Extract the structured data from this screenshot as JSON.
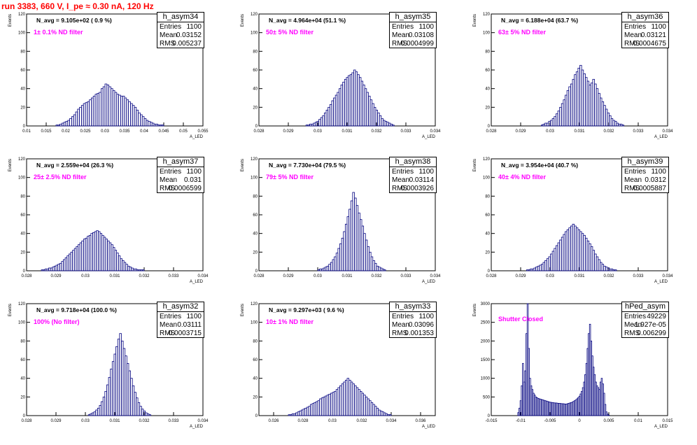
{
  "title": "run 3383,   660 V, I_pe ≈ 0.30 nA, 120 Hz",
  "stat_labels": {
    "entries": "Entries",
    "mean": "Mean",
    "rms": "RMS"
  },
  "colors": {
    "hist": "#00007f",
    "title": "#ff0000",
    "filter_text": "#ff00ff",
    "frame": "#000000"
  },
  "chart_data": [
    {
      "type": "bar",
      "name": "h_asym34",
      "navg": "N_avg = 9.105e+02 ( 0.9 %)",
      "filter": "1± 0.1% ND filter",
      "entries": "1100",
      "mean": "0.03152",
      "rms": "0.005237",
      "ylabel": "Events",
      "xlabel": "A_LED",
      "xlim": [
        0.01,
        0.055
      ],
      "ylim": [
        0,
        120
      ],
      "xticks": [
        0.01,
        0.015,
        0.02,
        0.025,
        0.03,
        0.035,
        0.04,
        0.045,
        0.05,
        0.055
      ],
      "xtick_labels": [
        "0.01",
        "0.015",
        "0.02",
        "0.025",
        "0.03",
        "0.035",
        "0.04",
        "0.045",
        "0.05",
        "0.055"
      ],
      "yticks": [
        0,
        20,
        40,
        60,
        80,
        100,
        120
      ],
      "ytick_labels": [
        "0",
        "20",
        "40",
        "60",
        "80",
        "100",
        "120"
      ],
      "bins": {
        "x0": 0.0175,
        "width": 0.0005,
        "values": [
          1,
          1,
          2,
          3,
          4,
          5,
          6,
          8,
          10,
          12,
          15,
          18,
          20,
          22,
          24,
          25,
          26,
          28,
          30,
          32,
          34,
          35,
          36,
          40,
          42,
          45,
          44,
          42,
          40,
          38,
          36,
          34,
          33,
          32,
          32,
          30,
          28,
          26,
          24,
          22,
          20,
          17,
          14,
          12,
          10,
          8,
          6,
          5,
          4,
          3,
          2,
          2,
          1,
          1,
          1
        ]
      }
    },
    {
      "type": "bar",
      "name": "h_asym35",
      "navg": "N_avg = 4.964e+04 (51.1 %)",
      "filter": "50± 5% ND filter",
      "entries": "1100",
      "mean": "0.03108",
      "rms": "0.0004999",
      "ylabel": "Events",
      "xlabel": "A_LED",
      "xlim": [
        0.028,
        0.034
      ],
      "ylim": [
        0,
        120
      ],
      "xticks": [
        0.028,
        0.029,
        0.03,
        0.031,
        0.032,
        0.033,
        0.034
      ],
      "xtick_labels": [
        "0.028",
        "0.029",
        "0.03",
        "0.031",
        "0.032",
        "0.033",
        "0.034"
      ],
      "yticks": [
        0,
        20,
        40,
        60,
        80,
        100,
        120
      ],
      "ytick_labels": [
        "0",
        "20",
        "40",
        "60",
        "80",
        "100",
        "120"
      ],
      "bins": {
        "x0": 0.0296,
        "width": 6.25e-05,
        "values": [
          1,
          1,
          2,
          2,
          3,
          4,
          5,
          7,
          9,
          11,
          14,
          17,
          20,
          23,
          27,
          30,
          33,
          36,
          40,
          44,
          47,
          50,
          52,
          54,
          55,
          57,
          60,
          58,
          55,
          52,
          48,
          44,
          40,
          36,
          32,
          28,
          24,
          20,
          17,
          14,
          11,
          8,
          6,
          5,
          4,
          3,
          2,
          1
        ]
      }
    },
    {
      "type": "bar",
      "name": "h_asym36",
      "navg": "N_avg = 6.188e+04 (63.7 %)",
      "filter": "63± 5% ND filter",
      "entries": "1100",
      "mean": "0.03121",
      "rms": "0.0004675",
      "ylabel": "Events",
      "xlabel": "A_LED",
      "xlim": [
        0.028,
        0.034
      ],
      "ylim": [
        0,
        120
      ],
      "xticks": [
        0.028,
        0.029,
        0.03,
        0.031,
        0.032,
        0.033,
        0.034
      ],
      "xtick_labels": [
        "0.028",
        "0.029",
        "0.03",
        "0.031",
        "0.032",
        "0.033",
        "0.034"
      ],
      "yticks": [
        0,
        20,
        40,
        60,
        80,
        100,
        120
      ],
      "ytick_labels": [
        "0",
        "20",
        "40",
        "60",
        "80",
        "100",
        "120"
      ],
      "bins": {
        "x0": 0.0297,
        "width": 6.25e-05,
        "values": [
          1,
          2,
          3,
          3,
          5,
          6,
          8,
          10,
          13,
          16,
          20,
          24,
          28,
          33,
          38,
          42,
          45,
          50,
          55,
          58,
          62,
          65,
          60,
          56,
          52,
          48,
          44,
          46,
          50,
          45,
          40,
          35,
          30,
          26,
          22,
          18,
          14,
          11,
          8,
          6,
          5,
          3,
          2,
          2,
          1
        ]
      }
    },
    {
      "type": "bar",
      "name": "h_asym37",
      "navg": "N_avg = 2.559e+04 (26.3 %)",
      "filter": "25± 2.5% ND filter",
      "entries": "1100",
      "mean": "0.031",
      "rms": "0.0006599",
      "ylabel": "Events",
      "xlabel": "A_LED",
      "xlim": [
        0.028,
        0.034
      ],
      "ylim": [
        0,
        120
      ],
      "xticks": [
        0.028,
        0.029,
        0.03,
        0.031,
        0.032,
        0.033,
        0.034
      ],
      "xtick_labels": [
        "0.028",
        "0.029",
        "0.03",
        "0.031",
        "0.032",
        "0.033",
        "0.034"
      ],
      "yticks": [
        0,
        20,
        40,
        60,
        80,
        100,
        120
      ],
      "ytick_labels": [
        "0",
        "20",
        "40",
        "60",
        "80",
        "100",
        "120"
      ],
      "bins": {
        "x0": 0.0285,
        "width": 6.25e-05,
        "values": [
          1,
          1,
          2,
          2,
          3,
          3,
          4,
          5,
          6,
          7,
          8,
          10,
          12,
          14,
          16,
          18,
          20,
          22,
          24,
          26,
          28,
          30,
          32,
          34,
          35,
          37,
          38,
          40,
          41,
          42,
          43,
          42,
          40,
          38,
          36,
          34,
          32,
          30,
          28,
          25,
          22,
          19,
          16,
          13,
          11,
          9,
          7,
          5,
          4,
          3,
          2,
          2,
          1,
          1,
          1,
          1
        ]
      }
    },
    {
      "type": "bar",
      "name": "h_asym38",
      "navg": "N_avg = 7.730e+04 (79.5 %)",
      "filter": "79± 5% ND filter",
      "entries": "1100",
      "mean": "0.03114",
      "rms": "0.0003926",
      "ylabel": "Events",
      "xlabel": "A_LED",
      "xlim": [
        0.028,
        0.034
      ],
      "ylim": [
        0,
        120
      ],
      "xticks": [
        0.028,
        0.029,
        0.03,
        0.031,
        0.032,
        0.033,
        0.034
      ],
      "xtick_labels": [
        "0.028",
        "0.029",
        "0.03",
        "0.031",
        "0.032",
        "0.033",
        "0.034"
      ],
      "yticks": [
        0,
        20,
        40,
        60,
        80,
        100,
        120
      ],
      "ytick_labels": [
        "0",
        "20",
        "40",
        "60",
        "80",
        "100",
        "120"
      ],
      "bins": {
        "x0": 0.03,
        "width": 6.25e-05,
        "values": [
          1,
          2,
          2,
          3,
          4,
          5,
          7,
          9,
          12,
          15,
          19,
          24,
          29,
          35,
          42,
          50,
          58,
          66,
          75,
          84,
          78,
          70,
          62,
          55,
          48,
          40,
          33,
          26,
          20,
          15,
          11,
          8,
          5,
          4,
          3,
          2,
          1
        ]
      }
    },
    {
      "type": "bar",
      "name": "h_asym39",
      "navg": "N_avg = 3.954e+04 (40.7 %)",
      "filter": "40± 4% ND filter",
      "entries": "1100",
      "mean": "0.0312",
      "rms": "0.0005887",
      "ylabel": "Events",
      "xlabel": "A_LED",
      "xlim": [
        0.028,
        0.034
      ],
      "ylim": [
        0,
        120
      ],
      "xticks": [
        0.028,
        0.029,
        0.03,
        0.031,
        0.032,
        0.033,
        0.034
      ],
      "xtick_labels": [
        "0.028",
        "0.029",
        "0.03",
        "0.031",
        "0.032",
        "0.033",
        "0.034"
      ],
      "yticks": [
        0,
        20,
        40,
        60,
        80,
        100,
        120
      ],
      "ytick_labels": [
        "0",
        "20",
        "40",
        "60",
        "80",
        "100",
        "120"
      ],
      "bins": {
        "x0": 0.0292,
        "width": 6.25e-05,
        "values": [
          1,
          1,
          2,
          2,
          3,
          4,
          5,
          6,
          7,
          9,
          11,
          13,
          15,
          18,
          21,
          24,
          27,
          30,
          33,
          36,
          39,
          42,
          44,
          46,
          48,
          50,
          48,
          46,
          44,
          42,
          40,
          38,
          35,
          32,
          29,
          26,
          22,
          18,
          15,
          12,
          9,
          7,
          5,
          4,
          3,
          2,
          2,
          1,
          1
        ]
      }
    },
    {
      "type": "bar",
      "name": "h_asym32",
      "navg": "N_avg = 9.718e+04 (100.0 %)",
      "filter": "100% (No filter)",
      "entries": "1100",
      "mean": "0.03111",
      "rms": "0.0003715",
      "ylabel": "Events",
      "xlabel": "A_LED",
      "xlim": [
        0.028,
        0.034
      ],
      "ylim": [
        0,
        120
      ],
      "xticks": [
        0.028,
        0.029,
        0.03,
        0.031,
        0.032,
        0.033,
        0.034
      ],
      "xtick_labels": [
        "0.028",
        "0.029",
        "0.03",
        "0.031",
        "0.032",
        "0.033",
        "0.034"
      ],
      "yticks": [
        0,
        20,
        40,
        60,
        80,
        100,
        120
      ],
      "ytick_labels": [
        "0",
        "20",
        "40",
        "60",
        "80",
        "100",
        "120"
      ],
      "bins": {
        "x0": 0.0301,
        "width": 6.25e-05,
        "values": [
          1,
          2,
          3,
          4,
          6,
          8,
          11,
          15,
          20,
          26,
          33,
          41,
          50,
          58,
          66,
          74,
          82,
          88,
          80,
          72,
          64,
          56,
          48,
          40,
          32,
          25,
          19,
          14,
          10,
          7,
          5,
          3,
          2,
          1
        ]
      }
    },
    {
      "type": "bar",
      "name": "h_asym33",
      "navg": "N_avg = 9.297e+03 ( 9.6 %)",
      "filter": "10± 1% ND filter",
      "entries": "1100",
      "mean": "0.03096",
      "rms": "0.001353",
      "ylabel": "Events",
      "xlabel": "A_LED",
      "xlim": [
        0.025,
        0.037
      ],
      "ylim": [
        0,
        120
      ],
      "xticks": [
        0.026,
        0.028,
        0.03,
        0.032,
        0.034,
        0.036
      ],
      "xtick_labels": [
        "0.026",
        "0.028",
        "0.03",
        "0.032",
        "0.034",
        "0.036"
      ],
      "yticks": [
        0,
        20,
        40,
        60,
        80,
        100,
        120
      ],
      "ytick_labels": [
        "0",
        "20",
        "40",
        "60",
        "80",
        "100",
        "120"
      ],
      "bins": {
        "x0": 0.027,
        "width": 0.000125,
        "values": [
          1,
          1,
          2,
          2,
          3,
          4,
          5,
          6,
          7,
          8,
          9,
          10,
          12,
          13,
          14,
          15,
          16,
          18,
          19,
          20,
          21,
          22,
          23,
          24,
          25,
          26,
          28,
          30,
          32,
          34,
          36,
          38,
          40,
          38,
          36,
          34,
          32,
          30,
          28,
          26,
          24,
          22,
          20,
          18,
          16,
          14,
          12,
          10,
          8,
          6,
          5,
          4,
          3,
          2,
          1,
          1
        ]
      }
    },
    {
      "type": "bar",
      "name": "hPed_asym",
      "navg": "",
      "filter": "Shutter Closed",
      "entries": "49229",
      "mean": "-1.927e-05",
      "rms": "0.006299",
      "ylabel": "Events",
      "xlabel": "A_LED",
      "xlim": [
        -0.015,
        0.015
      ],
      "ylim": [
        0,
        3000
      ],
      "xticks": [
        -0.015,
        -0.01,
        -0.005,
        0,
        0.005,
        0.01,
        0.015
      ],
      "xtick_labels": [
        "-0.015",
        "-0.01",
        "-0.005",
        "0",
        "0.005",
        "0.01",
        "0.015"
      ],
      "yticks": [
        0,
        500,
        1000,
        1500,
        2000,
        2500,
        3000
      ],
      "ytick_labels": [
        "0",
        "500",
        "1000",
        "1500",
        "2000",
        "2500",
        "3000"
      ],
      "bins": {
        "x0": -0.0105,
        "width": 0.0002,
        "values": [
          80,
          200,
          400,
          800,
          1400,
          900,
          1200,
          2200,
          3000,
          1800,
          1000,
          800,
          700,
          600,
          550,
          500,
          480,
          460,
          450,
          440,
          430,
          420,
          410,
          400,
          390,
          380,
          370,
          360,
          355,
          350,
          345,
          340,
          340,
          335,
          330,
          330,
          325,
          320,
          320,
          315,
          310,
          310,
          320,
          330,
          340,
          350,
          360,
          380,
          400,
          420,
          450,
          480,
          520,
          580,
          650,
          750,
          900,
          1100,
          1400,
          1800,
          2200,
          2450,
          2000,
          1600,
          1300,
          1100,
          900,
          800,
          750,
          700,
          900,
          1000,
          850,
          600,
          300,
          100,
          40,
          10
        ]
      }
    }
  ]
}
